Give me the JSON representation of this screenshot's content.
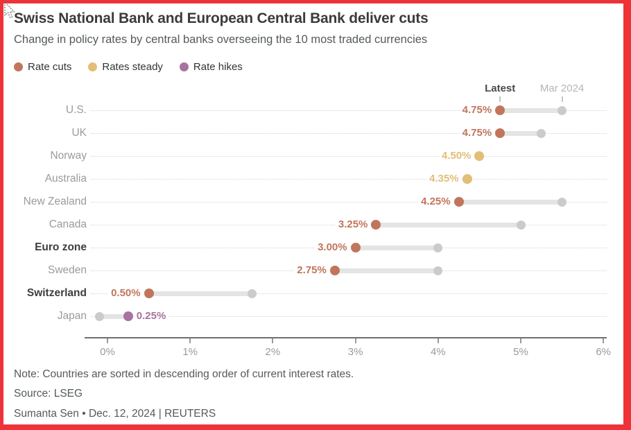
{
  "frame": {
    "border_color": "#EE3338"
  },
  "header": {
    "title": "Swiss National Bank and European Central Bank deliver cuts",
    "subtitle": "Change in policy rates by central banks overseeing the 10 most traded currencies"
  },
  "legend": {
    "items": [
      {
        "key": "cut",
        "label": "Rate cuts",
        "color": "#C1755C"
      },
      {
        "key": "steady",
        "label": "Rates steady",
        "color": "#E3BE77"
      },
      {
        "key": "hike",
        "label": "Rate hikes",
        "color": "#A873A0"
      }
    ]
  },
  "chart_data": {
    "type": "scatter",
    "subtype": "dumbbell-dot-plot",
    "series_header": {
      "latest_label": "Latest",
      "previous_label": "Mar 2024",
      "latest_anchor": 4.75,
      "previous_anchor": 5.5
    },
    "x_axis": {
      "tick_labels": [
        "0%",
        "1%",
        "2%",
        "3%",
        "4%",
        "5%",
        "6%"
      ],
      "tick_values": [
        0,
        1,
        2,
        3,
        4,
        5,
        6
      ],
      "xlim": [
        0,
        6
      ]
    },
    "colors": {
      "previous_dot": "#CBCBCB",
      "connector_bar": "#E4E4E4",
      "cut": "#C1755C",
      "steady": "#E3BE77",
      "hike": "#A873A0"
    },
    "rows": [
      {
        "country": "U.S.",
        "latest": 4.75,
        "latest_label": "4.75%",
        "previous": 5.5,
        "status": "cut",
        "bold": false,
        "label_side": "left"
      },
      {
        "country": "UK",
        "latest": 4.75,
        "latest_label": "4.75%",
        "previous": 5.25,
        "status": "cut",
        "bold": false,
        "label_side": "left"
      },
      {
        "country": "Norway",
        "latest": 4.5,
        "latest_label": "4.50%",
        "previous": 4.5,
        "status": "steady",
        "bold": false,
        "label_side": "left"
      },
      {
        "country": "Australia",
        "latest": 4.35,
        "latest_label": "4.35%",
        "previous": 4.35,
        "status": "steady",
        "bold": false,
        "label_side": "left"
      },
      {
        "country": "New Zealand",
        "latest": 4.25,
        "latest_label": "4.25%",
        "previous": 5.5,
        "status": "cut",
        "bold": false,
        "label_side": "left"
      },
      {
        "country": "Canada",
        "latest": 3.25,
        "latest_label": "3.25%",
        "previous": 5.0,
        "status": "cut",
        "bold": false,
        "label_side": "left"
      },
      {
        "country": "Euro zone",
        "latest": 3.0,
        "latest_label": "3.00%",
        "previous": 4.0,
        "status": "cut",
        "bold": true,
        "label_side": "left"
      },
      {
        "country": "Sweden",
        "latest": 2.75,
        "latest_label": "2.75%",
        "previous": 4.0,
        "status": "cut",
        "bold": false,
        "label_side": "left"
      },
      {
        "country": "Switzerland",
        "latest": 0.5,
        "latest_label": "0.50%",
        "previous": 1.75,
        "status": "cut",
        "bold": true,
        "label_side": "left"
      },
      {
        "country": "Japan",
        "latest": 0.25,
        "latest_label": "0.25%",
        "previous": -0.1,
        "status": "hike",
        "bold": false,
        "label_side": "right"
      }
    ]
  },
  "footer": {
    "note": "Note: Countries are sorted in descending order of current interest rates.",
    "source": "Source: LSEG",
    "byline": "Sumanta Sen • Dec. 12, 2024 | REUTERS"
  }
}
